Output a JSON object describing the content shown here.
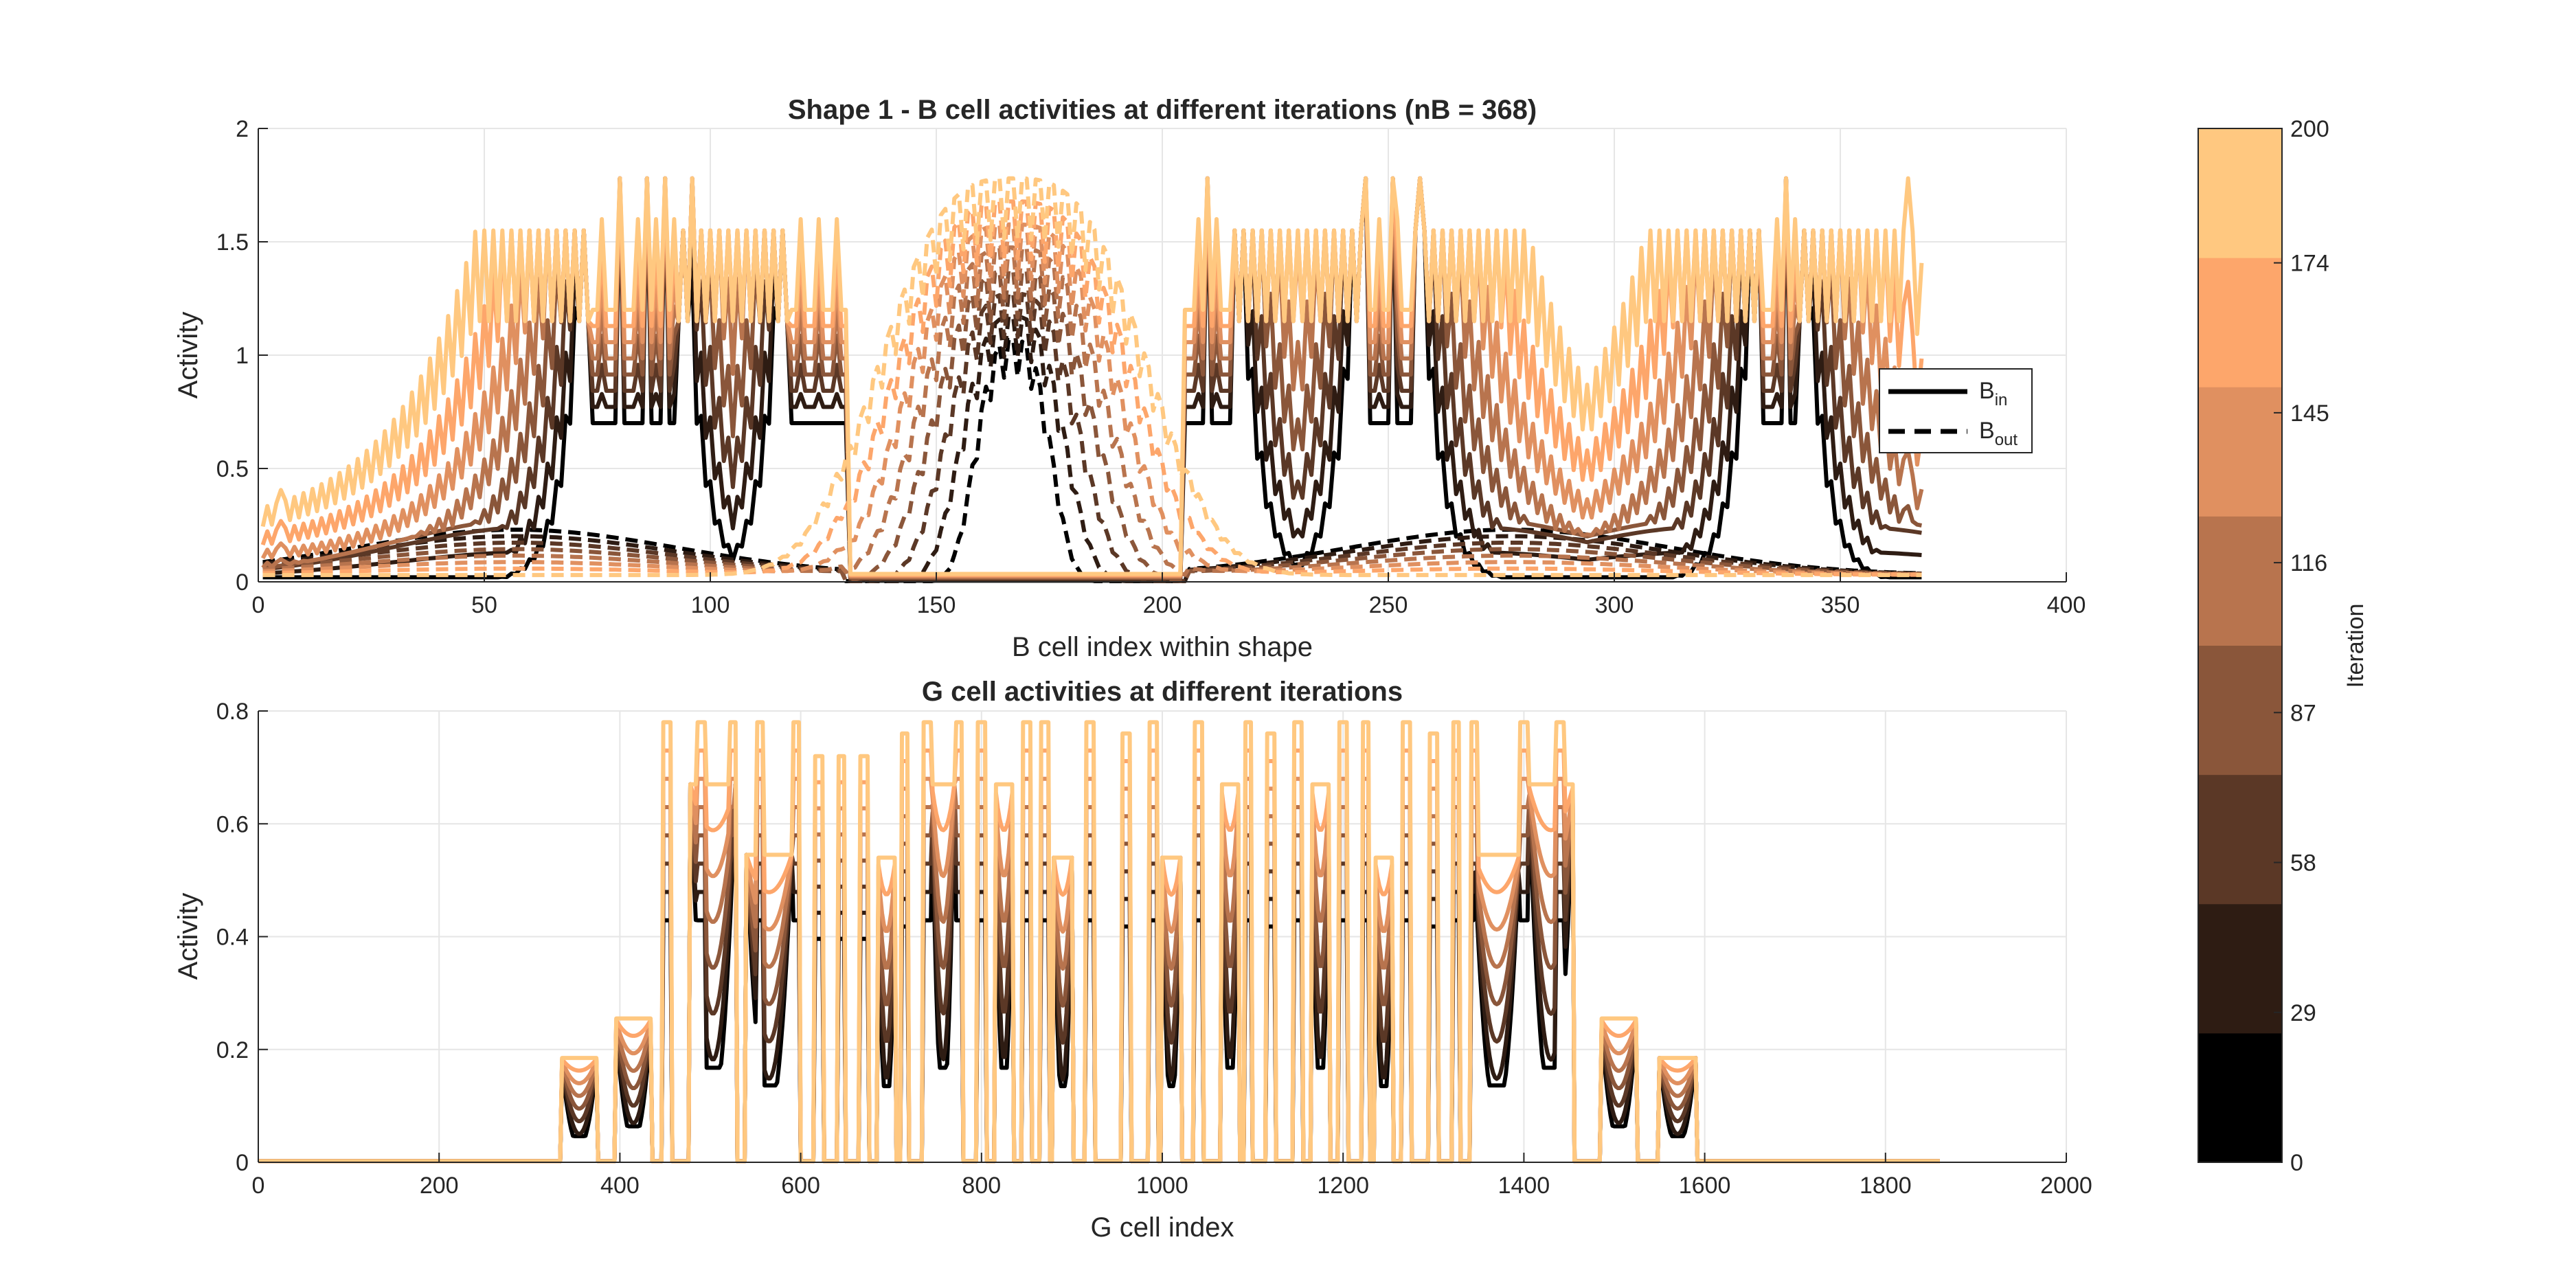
{
  "chart_data": [
    {
      "type": "line",
      "title": "Shape 1 - B cell activities at different iterations (nB = 368)",
      "xlabel": "B cell index within shape",
      "ylabel": "Activity",
      "xlim": [
        0,
        400
      ],
      "ylim": [
        0,
        2
      ],
      "xticks": [
        0,
        50,
        100,
        150,
        200,
        250,
        300,
        350,
        400
      ],
      "yticks": [
        0,
        0.5,
        1,
        1.5,
        2
      ],
      "xtick_labels": [
        "0",
        "50",
        "100",
        "150",
        "200",
        "250",
        "300",
        "350",
        "400"
      ],
      "ytick_labels": [
        "0",
        "0.5",
        "1",
        "1.5",
        "2"
      ],
      "grid": true,
      "legend_position": "right",
      "legend": [
        {
          "base": "B",
          "sub": "in",
          "style": "solid"
        },
        {
          "base": "B",
          "sub": "out",
          "style": "dashed"
        }
      ],
      "n_cells": 368,
      "iterations_shown": [
        0,
        29,
        58,
        87,
        116,
        145,
        174,
        200
      ],
      "series_summary": {
        "B_in_final_plateau": [
          1.15,
          1.55
        ],
        "B_in_peak": 1.78,
        "B_out_final_range": [
          0.0,
          0.05
        ],
        "B_out_peak_center": 1.78
      }
    },
    {
      "type": "line",
      "title": "G cell activities at different iterations",
      "xlabel": "G cell index",
      "ylabel": "Activity",
      "xlim": [
        0,
        2000
      ],
      "ylim": [
        0,
        0.8
      ],
      "xticks": [
        0,
        200,
        400,
        600,
        800,
        1000,
        1200,
        1400,
        1600,
        1800,
        2000
      ],
      "yticks": [
        0,
        0.2,
        0.4,
        0.6,
        0.8
      ],
      "xtick_labels": [
        "0",
        "200",
        "400",
        "600",
        "800",
        "1000",
        "1200",
        "1400",
        "1600",
        "1800",
        "2000"
      ],
      "ytick_labels": [
        "0",
        "0.2",
        "0.4",
        "0.6",
        "0.8"
      ],
      "grid": true,
      "n_cells": 1860,
      "blocks": [
        {
          "start": 335,
          "end": 375,
          "level": 0.185
        },
        {
          "start": 395,
          "end": 435,
          "level": 0.255
        },
        {
          "start": 478,
          "end": 528,
          "level": 0.67
        },
        {
          "start": 540,
          "end": 590,
          "level": 0.545
        },
        {
          "start": 685,
          "end": 705,
          "level": 0.54
        },
        {
          "start": 745,
          "end": 770,
          "level": 0.67
        },
        {
          "start": 815,
          "end": 835,
          "level": 0.67
        },
        {
          "start": 880,
          "end": 900,
          "level": 0.54
        },
        {
          "start": 1000,
          "end": 1020,
          "level": 0.54
        },
        {
          "start": 1065,
          "end": 1085,
          "level": 0.67
        },
        {
          "start": 1165,
          "end": 1185,
          "level": 0.67
        },
        {
          "start": 1235,
          "end": 1255,
          "level": 0.54
        },
        {
          "start": 1345,
          "end": 1395,
          "level": 0.545
        },
        {
          "start": 1405,
          "end": 1455,
          "level": 0.67
        },
        {
          "start": 1485,
          "end": 1525,
          "level": 0.255
        },
        {
          "start": 1550,
          "end": 1590,
          "level": 0.185
        }
      ],
      "spikes": [
        {
          "x": 452,
          "level": 0.78
        },
        {
          "x": 490,
          "level": 0.78
        },
        {
          "x": 525,
          "level": 0.78
        },
        {
          "x": 555,
          "level": 0.78
        },
        {
          "x": 595,
          "level": 0.78
        },
        {
          "x": 620,
          "level": 0.72
        },
        {
          "x": 645,
          "level": 0.72
        },
        {
          "x": 670,
          "level": 0.72
        },
        {
          "x": 715,
          "level": 0.76
        },
        {
          "x": 740,
          "level": 0.78
        },
        {
          "x": 775,
          "level": 0.78
        },
        {
          "x": 800,
          "level": 0.78
        },
        {
          "x": 850,
          "level": 0.78
        },
        {
          "x": 870,
          "level": 0.78
        },
        {
          "x": 920,
          "level": 0.78
        },
        {
          "x": 960,
          "level": 0.76
        },
        {
          "x": 990,
          "level": 0.78
        },
        {
          "x": 1040,
          "level": 0.78
        },
        {
          "x": 1095,
          "level": 0.78
        },
        {
          "x": 1120,
          "level": 0.76
        },
        {
          "x": 1150,
          "level": 0.78
        },
        {
          "x": 1200,
          "level": 0.78
        },
        {
          "x": 1225,
          "level": 0.78
        },
        {
          "x": 1270,
          "level": 0.78
        },
        {
          "x": 1300,
          "level": 0.76
        },
        {
          "x": 1325,
          "level": 0.78
        },
        {
          "x": 1345,
          "level": 0.78
        },
        {
          "x": 1400,
          "level": 0.78
        },
        {
          "x": 1440,
          "level": 0.78
        }
      ]
    }
  ],
  "colorbar": {
    "label": "Iteration",
    "ticks": [
      "0",
      "29",
      "58",
      "87",
      "116",
      "145",
      "174",
      "200"
    ],
    "colors": [
      "#000000",
      "#2e1c13",
      "#5b3826",
      "#8a563a",
      "#b8744e",
      "#e09060",
      "#fda66b",
      "#ffc880"
    ]
  }
}
